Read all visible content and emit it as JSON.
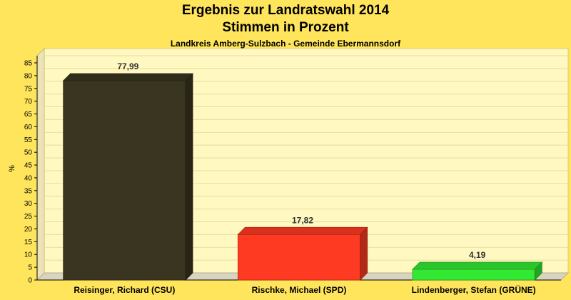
{
  "chart_data": {
    "type": "bar",
    "title": "Ergebnis zur Landratswahl 2014",
    "subtitle": "Stimmen in Prozent",
    "caption": "Landkreis Amberg-Sulzbach - Gemeinde Ebermannsdorf",
    "ylabel": "%",
    "xlabel": "",
    "ylim": [
      0,
      85
    ],
    "ytick_step": 5,
    "grid": true,
    "legend": "none",
    "categories": [
      "Reisinger, Richard (CSU)",
      "Rischke, Michael (SPD)",
      "Lindenberger, Stefan (GRÜNE)"
    ],
    "values": [
      77.99,
      17.82,
      4.19
    ],
    "value_labels": [
      "77,99",
      "17,82",
      "4,19"
    ],
    "colors": {
      "bars": [
        "#3a3520",
        "#ff3a22",
        "#33e833"
      ],
      "background": "#ffe55c",
      "plot_background": "#fff8c0",
      "grid": "#e8dca0"
    }
  }
}
